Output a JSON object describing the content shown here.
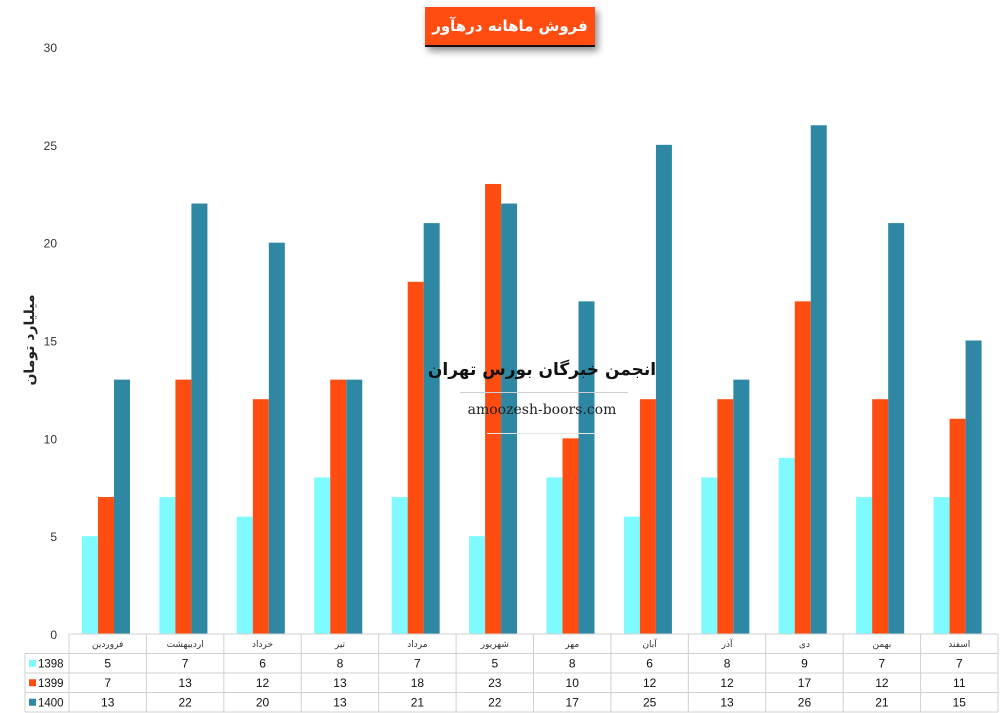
{
  "chart_data": {
    "type": "bar",
    "title": "فروش ماهانه درهآور",
    "ylabel": "میلیارد تومان",
    "ylim": [
      0,
      30
    ],
    "yticks": [
      0,
      5,
      10,
      15,
      20,
      25,
      30
    ],
    "categories": [
      "فروردین",
      "اردیبهشت",
      "خرداد",
      "تیر",
      "مرداد",
      "شهریور",
      "مهر",
      "آبان",
      "آذر",
      "دی",
      "بهمن",
      "اسفند"
    ],
    "series": [
      {
        "name": "1398",
        "color": "#7ffaff",
        "values": [
          5,
          7,
          6,
          8,
          7,
          5,
          8,
          6,
          8,
          9,
          7,
          7
        ]
      },
      {
        "name": "1399",
        "color": "#ff4d12",
        "values": [
          7,
          13,
          12,
          13,
          18,
          23,
          10,
          12,
          12,
          17,
          12,
          11
        ]
      },
      {
        "name": "1400",
        "color": "#2e88a4",
        "values": [
          13,
          22,
          20,
          13,
          21,
          22,
          17,
          25,
          13,
          26,
          21,
          15
        ]
      }
    ],
    "grid": false,
    "legend": "table-left"
  },
  "watermark": {
    "title": "انجمن خبرگان بورس تهران",
    "site": "amoozesh-boors.com"
  }
}
